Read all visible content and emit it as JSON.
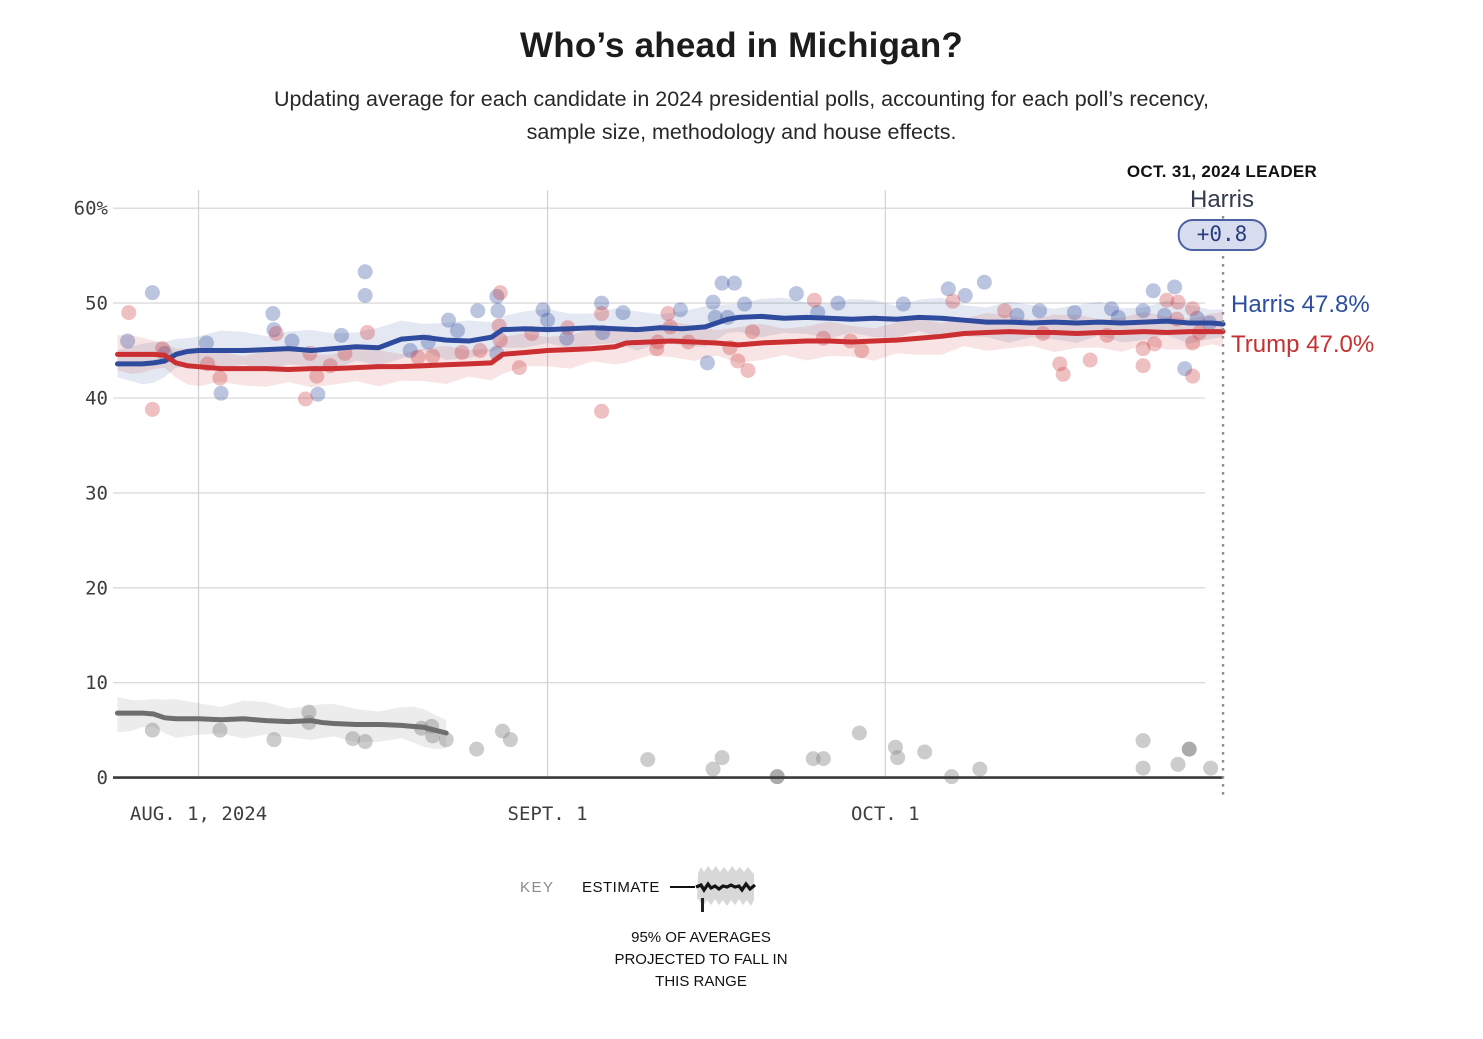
{
  "header": {
    "title": "Who’s ahead in Michigan?",
    "subtitle_line1": "Updating average for each candidate in 2024 presidential polls, accounting for each poll’s recency,",
    "subtitle_line2": "sample size, methodology and house effects."
  },
  "leader": {
    "heading": "OCT. 31, 2024 LEADER",
    "name": "Harris",
    "margin": "+0.8"
  },
  "end_labels": {
    "harris": "Harris 47.8%",
    "trump": "Trump 47.0%"
  },
  "key": {
    "label": "KEY",
    "estimate_label": "ESTIMATE",
    "caption_lines": [
      "95% OF AVERAGES",
      "PROJECTED TO FALL IN",
      "THIS RANGE"
    ]
  },
  "colors": {
    "harris": "#2f4b9e",
    "trump": "#cb2f31",
    "other": "#6e6e6e",
    "other_dot": "#8f8f8f",
    "grid": "#d2d2d2",
    "axis": "#3a3a3a",
    "dotted_leader": "#8f8f8f",
    "badge_bg": "#d7ddef",
    "badge_border": "#4c61a3"
  },
  "chart_data": {
    "type": "line",
    "title": "Who’s ahead in Michigan?",
    "x_axis": {
      "unit": "days (day 0 = July 26, 2024; day 97 = Oct. 31, 2024)",
      "range": [
        -1.2,
        97
      ],
      "ticks": [
        {
          "day": 6,
          "label": "AUG. 1, 2024"
        },
        {
          "day": 37,
          "label": "SEPT. 1"
        },
        {
          "day": 67,
          "label": "OCT. 1"
        }
      ]
    },
    "y_axis": {
      "unit": "percent",
      "range": [
        0,
        62
      ],
      "ticks": [
        {
          "v": 0,
          "label": "0"
        },
        {
          "v": 10,
          "label": "10"
        },
        {
          "v": 20,
          "label": "20"
        },
        {
          "v": 30,
          "label": "30"
        },
        {
          "v": 40,
          "label": "40"
        },
        {
          "v": 50,
          "label": "50"
        },
        {
          "v": 60,
          "label": "60%"
        }
      ]
    },
    "series": [
      {
        "name": "Harris",
        "color": "#2f4b9e",
        "final_value": 47.8,
        "band_halfwidth": 1.8,
        "points": [
          [
            -1.2,
            43.6
          ],
          [
            0,
            43.6
          ],
          [
            1,
            43.6
          ],
          [
            2,
            43.7
          ],
          [
            3,
            43.9
          ],
          [
            4,
            44.6
          ],
          [
            5,
            44.9
          ],
          [
            6,
            45.0
          ],
          [
            8,
            45.0
          ],
          [
            10,
            45.0
          ],
          [
            12,
            45.1
          ],
          [
            14,
            45.2
          ],
          [
            16,
            45.0
          ],
          [
            18,
            45.2
          ],
          [
            20,
            45.4
          ],
          [
            22,
            45.3
          ],
          [
            24,
            46.2
          ],
          [
            26,
            46.4
          ],
          [
            28,
            46.1
          ],
          [
            30,
            46.0
          ],
          [
            32,
            46.4
          ],
          [
            33,
            47.2
          ],
          [
            35,
            47.3
          ],
          [
            37,
            47.2
          ],
          [
            39,
            47.3
          ],
          [
            41,
            47.4
          ],
          [
            43,
            47.3
          ],
          [
            45,
            47.2
          ],
          [
            47,
            47.4
          ],
          [
            49,
            47.3
          ],
          [
            51,
            47.5
          ],
          [
            53,
            48.3
          ],
          [
            54,
            48.5
          ],
          [
            56,
            48.6
          ],
          [
            58,
            48.4
          ],
          [
            60,
            48.5
          ],
          [
            62,
            48.4
          ],
          [
            64,
            48.3
          ],
          [
            66,
            48.4
          ],
          [
            68,
            48.3
          ],
          [
            70,
            48.5
          ],
          [
            72,
            48.4
          ],
          [
            74,
            48.2
          ],
          [
            76,
            48.0
          ],
          [
            78,
            48.0
          ],
          [
            80,
            47.9
          ],
          [
            82,
            48.0
          ],
          [
            84,
            47.9
          ],
          [
            86,
            48.0
          ],
          [
            88,
            47.9
          ],
          [
            90,
            48.0
          ],
          [
            92,
            48.1
          ],
          [
            94,
            47.9
          ],
          [
            96,
            47.9
          ],
          [
            97,
            47.8
          ]
        ]
      },
      {
        "name": "Trump",
        "color": "#cb2f31",
        "final_value": 47.0,
        "band_halfwidth": 1.7,
        "points": [
          [
            -1.2,
            44.6
          ],
          [
            0,
            44.6
          ],
          [
            1,
            44.6
          ],
          [
            2,
            44.6
          ],
          [
            3,
            44.5
          ],
          [
            4,
            43.7
          ],
          [
            5,
            43.4
          ],
          [
            6,
            43.3
          ],
          [
            8,
            43.1
          ],
          [
            10,
            43.1
          ],
          [
            12,
            43.1
          ],
          [
            14,
            43.0
          ],
          [
            16,
            43.1
          ],
          [
            18,
            43.1
          ],
          [
            20,
            43.2
          ],
          [
            22,
            43.3
          ],
          [
            24,
            43.3
          ],
          [
            26,
            43.4
          ],
          [
            28,
            43.5
          ],
          [
            30,
            43.6
          ],
          [
            32,
            43.7
          ],
          [
            33,
            44.6
          ],
          [
            35,
            44.8
          ],
          [
            37,
            45.0
          ],
          [
            39,
            45.1
          ],
          [
            41,
            45.2
          ],
          [
            43,
            45.4
          ],
          [
            44,
            45.8
          ],
          [
            46,
            45.9
          ],
          [
            48,
            46.0
          ],
          [
            50,
            45.9
          ],
          [
            52,
            45.8
          ],
          [
            54,
            45.6
          ],
          [
            56,
            45.8
          ],
          [
            58,
            45.9
          ],
          [
            60,
            46.0
          ],
          [
            62,
            46.0
          ],
          [
            64,
            45.9
          ],
          [
            66,
            46.0
          ],
          [
            68,
            46.1
          ],
          [
            70,
            46.3
          ],
          [
            72,
            46.5
          ],
          [
            74,
            46.8
          ],
          [
            76,
            46.9
          ],
          [
            78,
            47.0
          ],
          [
            80,
            46.9
          ],
          [
            82,
            46.9
          ],
          [
            84,
            46.8
          ],
          [
            86,
            46.9
          ],
          [
            88,
            46.9
          ],
          [
            90,
            47.0
          ],
          [
            92,
            46.9
          ],
          [
            94,
            47.0
          ],
          [
            96,
            47.0
          ],
          [
            97,
            47.0
          ]
        ]
      },
      {
        "name": "Other",
        "color": "#6e6e6e",
        "band_halfwidth": 1.7,
        "points": [
          [
            -1.2,
            6.8
          ],
          [
            0,
            6.8
          ],
          [
            1,
            6.8
          ],
          [
            2,
            6.7
          ],
          [
            3,
            6.3
          ],
          [
            4,
            6.2
          ],
          [
            6,
            6.2
          ],
          [
            8,
            6.1
          ],
          [
            10,
            6.2
          ],
          [
            12,
            6.0
          ],
          [
            14,
            5.9
          ],
          [
            16,
            6.0
          ],
          [
            17,
            5.8
          ],
          [
            18,
            5.7
          ],
          [
            20,
            5.6
          ],
          [
            22,
            5.6
          ],
          [
            24,
            5.5
          ],
          [
            25,
            5.4
          ],
          [
            26,
            5.3
          ],
          [
            27,
            5.0
          ],
          [
            28,
            4.7
          ]
        ]
      }
    ],
    "polls": [
      [
        -0.3,
        46.0,
        "harris"
      ],
      [
        1.9,
        51.1,
        "harris"
      ],
      [
        3.0,
        44.7,
        "harris"
      ],
      [
        6.7,
        45.8,
        "harris"
      ],
      [
        8.0,
        40.5,
        "harris"
      ],
      [
        12.6,
        48.9,
        "harris"
      ],
      [
        12.7,
        47.2,
        "harris"
      ],
      [
        14.3,
        46.0,
        "harris"
      ],
      [
        16.6,
        40.4,
        "harris"
      ],
      [
        18.7,
        46.6,
        "harris"
      ],
      [
        20.8,
        53.3,
        "harris"
      ],
      [
        20.8,
        50.8,
        "harris"
      ],
      [
        24.8,
        45.0,
        "harris"
      ],
      [
        26.4,
        45.9,
        "harris"
      ],
      [
        28.2,
        48.2,
        "harris"
      ],
      [
        29.0,
        47.1,
        "harris"
      ],
      [
        30.8,
        49.2,
        "harris"
      ],
      [
        32.5,
        50.7,
        "harris"
      ],
      [
        32.6,
        49.2,
        "harris"
      ],
      [
        32.5,
        44.7,
        "harris"
      ],
      [
        36.6,
        49.3,
        "harris"
      ],
      [
        37.0,
        48.2,
        "harris"
      ],
      [
        38.7,
        46.3,
        "harris"
      ],
      [
        41.8,
        50.0,
        "harris"
      ],
      [
        41.9,
        46.9,
        "harris"
      ],
      [
        43.7,
        49.0,
        "harris"
      ],
      [
        48.8,
        49.3,
        "harris"
      ],
      [
        51.2,
        43.7,
        "harris"
      ],
      [
        51.7,
        50.1,
        "harris"
      ],
      [
        51.9,
        48.5,
        "harris"
      ],
      [
        52.5,
        52.1,
        "harris"
      ],
      [
        53.6,
        52.1,
        "harris"
      ],
      [
        53.0,
        48.5,
        "harris"
      ],
      [
        54.5,
        49.9,
        "harris"
      ],
      [
        59.1,
        51.0,
        "harris"
      ],
      [
        61.0,
        49.0,
        "harris"
      ],
      [
        62.8,
        50.0,
        "harris"
      ],
      [
        68.6,
        49.9,
        "harris"
      ],
      [
        72.6,
        51.5,
        "harris"
      ],
      [
        74.1,
        50.8,
        "harris"
      ],
      [
        75.8,
        52.2,
        "harris"
      ],
      [
        78.7,
        48.7,
        "harris"
      ],
      [
        80.7,
        49.2,
        "harris"
      ],
      [
        83.8,
        49.0,
        "harris"
      ],
      [
        87.1,
        49.4,
        "harris"
      ],
      [
        87.7,
        48.5,
        "harris"
      ],
      [
        89.9,
        49.2,
        "harris"
      ],
      [
        90.8,
        51.3,
        "harris"
      ],
      [
        91.8,
        48.7,
        "harris"
      ],
      [
        92.7,
        51.7,
        "harris"
      ],
      [
        93.6,
        43.1,
        "harris"
      ],
      [
        94.7,
        48.4,
        "harris"
      ],
      [
        95.8,
        47.9,
        "harris"
      ],
      [
        -0.2,
        49.0,
        "trump"
      ],
      [
        1.9,
        38.8,
        "trump"
      ],
      [
        2.8,
        45.2,
        "trump"
      ],
      [
        6.8,
        43.6,
        "trump"
      ],
      [
        7.9,
        42.1,
        "trump"
      ],
      [
        12.9,
        46.8,
        "trump"
      ],
      [
        15.5,
        39.9,
        "trump"
      ],
      [
        15.9,
        44.7,
        "trump"
      ],
      [
        16.5,
        42.3,
        "trump"
      ],
      [
        17.7,
        43.4,
        "trump"
      ],
      [
        19.0,
        44.7,
        "trump"
      ],
      [
        21.0,
        46.9,
        "trump"
      ],
      [
        25.5,
        44.3,
        "trump"
      ],
      [
        26.8,
        44.4,
        "trump"
      ],
      [
        29.4,
        44.8,
        "trump"
      ],
      [
        31.0,
        45.0,
        "trump"
      ],
      [
        32.8,
        51.1,
        "trump"
      ],
      [
        32.7,
        47.6,
        "trump"
      ],
      [
        32.8,
        46.1,
        "trump"
      ],
      [
        34.5,
        43.2,
        "trump"
      ],
      [
        35.6,
        46.8,
        "trump"
      ],
      [
        38.8,
        47.4,
        "trump"
      ],
      [
        41.8,
        48.9,
        "trump"
      ],
      [
        41.8,
        38.6,
        "trump"
      ],
      [
        46.7,
        45.2,
        "trump"
      ],
      [
        46.8,
        45.9,
        "trump"
      ],
      [
        47.7,
        48.9,
        "trump"
      ],
      [
        47.9,
        47.5,
        "trump"
      ],
      [
        49.5,
        45.9,
        "trump"
      ],
      [
        53.2,
        45.3,
        "trump"
      ],
      [
        53.9,
        43.9,
        "trump"
      ],
      [
        54.8,
        42.9,
        "trump"
      ],
      [
        55.2,
        47.0,
        "trump"
      ],
      [
        60.7,
        50.3,
        "trump"
      ],
      [
        61.5,
        46.3,
        "trump"
      ],
      [
        63.9,
        46.0,
        "trump"
      ],
      [
        64.9,
        45.0,
        "trump"
      ],
      [
        73.0,
        50.2,
        "trump"
      ],
      [
        77.6,
        49.2,
        "trump"
      ],
      [
        81.0,
        46.8,
        "trump"
      ],
      [
        82.5,
        43.6,
        "trump"
      ],
      [
        82.8,
        42.5,
        "trump"
      ],
      [
        85.2,
        44.0,
        "trump"
      ],
      [
        86.7,
        46.6,
        "trump"
      ],
      [
        89.9,
        45.2,
        "trump"
      ],
      [
        89.9,
        43.4,
        "trump"
      ],
      [
        90.9,
        45.7,
        "trump"
      ],
      [
        92.0,
        50.3,
        "trump"
      ],
      [
        93.0,
        50.1,
        "trump"
      ],
      [
        92.9,
        48.3,
        "trump"
      ],
      [
        94.3,
        49.4,
        "trump"
      ],
      [
        94.3,
        45.8,
        "trump"
      ],
      [
        94.3,
        42.3,
        "trump"
      ],
      [
        94.9,
        46.9,
        "trump"
      ],
      [
        1.9,
        5.0,
        "other"
      ],
      [
        7.9,
        5.0,
        "other"
      ],
      [
        12.7,
        4.0,
        "other"
      ],
      [
        15.8,
        6.9,
        "other"
      ],
      [
        15.8,
        5.8,
        "other"
      ],
      [
        19.7,
        4.1,
        "other"
      ],
      [
        20.8,
        3.8,
        "other"
      ],
      [
        25.8,
        5.2,
        "other"
      ],
      [
        26.7,
        5.4,
        "other"
      ],
      [
        26.8,
        4.4,
        "other"
      ],
      [
        28.0,
        4.0,
        "other"
      ],
      [
        30.7,
        3.0,
        "other"
      ],
      [
        33.0,
        4.9,
        "other"
      ],
      [
        33.7,
        4.0,
        "other"
      ],
      [
        45.9,
        1.9,
        "other"
      ],
      [
        51.7,
        0.9,
        "other"
      ],
      [
        52.5,
        2.1,
        "other"
      ],
      [
        57.4,
        0.1,
        "other",
        "dark"
      ],
      [
        60.6,
        2.0,
        "other"
      ],
      [
        61.5,
        2.0,
        "other"
      ],
      [
        64.7,
        4.7,
        "other"
      ],
      [
        67.9,
        3.2,
        "other"
      ],
      [
        68.1,
        2.1,
        "other"
      ],
      [
        70.5,
        2.7,
        "other"
      ],
      [
        72.9,
        0.1,
        "other"
      ],
      [
        75.4,
        0.9,
        "other"
      ],
      [
        89.9,
        3.9,
        "other"
      ],
      [
        89.9,
        1.0,
        "other"
      ],
      [
        93.0,
        1.4,
        "other"
      ],
      [
        94.0,
        3.0,
        "other",
        "dark"
      ],
      [
        95.9,
        1.0,
        "other"
      ]
    ],
    "annotations": {
      "leader_date": "OCT. 31, 2024 LEADER",
      "leader_name": "Harris",
      "leader_margin": "+0.8",
      "harris_end_label": "Harris 47.8%",
      "trump_end_label": "Trump 47.0%"
    },
    "grid": true,
    "legend_position": "below-chart-key"
  }
}
